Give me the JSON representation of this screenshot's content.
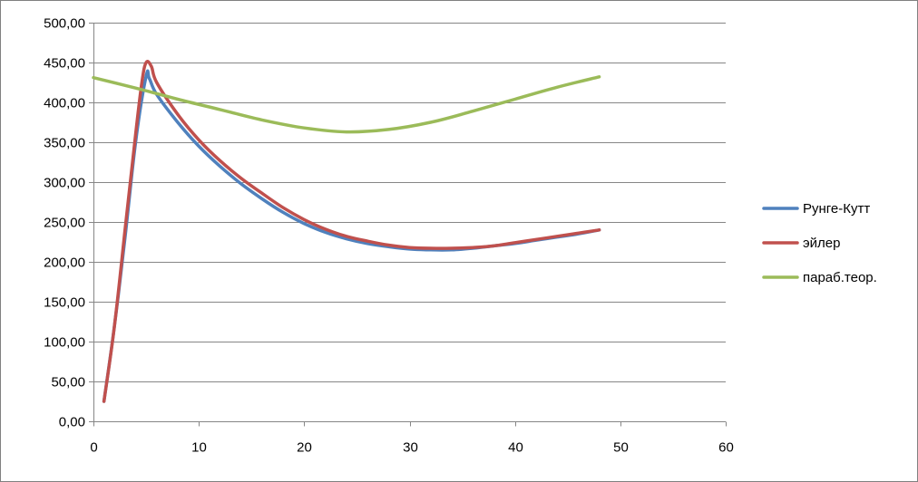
{
  "chart_data": {
    "type": "line",
    "title": "",
    "xlabel": "",
    "ylabel": "",
    "xlim": [
      0,
      60
    ],
    "ylim": [
      0,
      500
    ],
    "x_ticks": [
      0,
      10,
      20,
      30,
      40,
      50,
      60
    ],
    "y_ticks": [
      0,
      50,
      100,
      150,
      200,
      250,
      300,
      350,
      400,
      450,
      500
    ],
    "x_tick_labels": [
      "0",
      "10",
      "20",
      "30",
      "40",
      "50",
      "60"
    ],
    "y_tick_labels": [
      "0,00",
      "50,00",
      "100,00",
      "150,00",
      "200,00",
      "250,00",
      "300,00",
      "350,00",
      "400,00",
      "450,00",
      "500,00"
    ],
    "grid": "horizontal",
    "legend_position": "right",
    "series": [
      {
        "name": "Рунге-Кутт",
        "color": "#4F81BD",
        "x": [
          1,
          2,
          3,
          4,
          5,
          5.3,
          6,
          8,
          10,
          12,
          14,
          16,
          18,
          20,
          22,
          24,
          26,
          28,
          30,
          32,
          34,
          36,
          38,
          40,
          42,
          44,
          46,
          48
        ],
        "y": [
          25,
          120,
          230,
          350,
          433,
          430,
          410,
          375,
          345,
          320,
          298,
          279,
          262,
          248,
          237,
          229,
          223,
          219,
          216,
          215,
          215,
          217,
          220,
          223,
          227,
          231,
          235,
          240
        ]
      },
      {
        "name": "эйлер",
        "color": "#C0504D",
        "x": [
          1,
          2,
          3,
          4,
          4.6,
          5,
          5.5,
          6,
          8,
          10,
          12,
          14,
          16,
          18,
          20,
          22,
          24,
          26,
          28,
          30,
          32,
          34,
          36,
          38,
          40,
          42,
          44,
          46,
          48
        ],
        "y": [
          25,
          120,
          240,
          360,
          425,
          450,
          445,
          425,
          385,
          353,
          327,
          305,
          286,
          268,
          253,
          241,
          232,
          226,
          221,
          218,
          217,
          217,
          218,
          220,
          224,
          228,
          232,
          236,
          240
        ]
      },
      {
        "name": "параб.теор.",
        "color": "#9BBB59",
        "x": [
          0,
          4,
          8,
          12,
          16,
          20,
          24,
          28,
          32,
          36,
          40,
          44,
          48
        ],
        "y": [
          431,
          418,
          404,
          391,
          378,
          368,
          363,
          366,
          375,
          389,
          404,
          419,
          432
        ]
      }
    ]
  }
}
